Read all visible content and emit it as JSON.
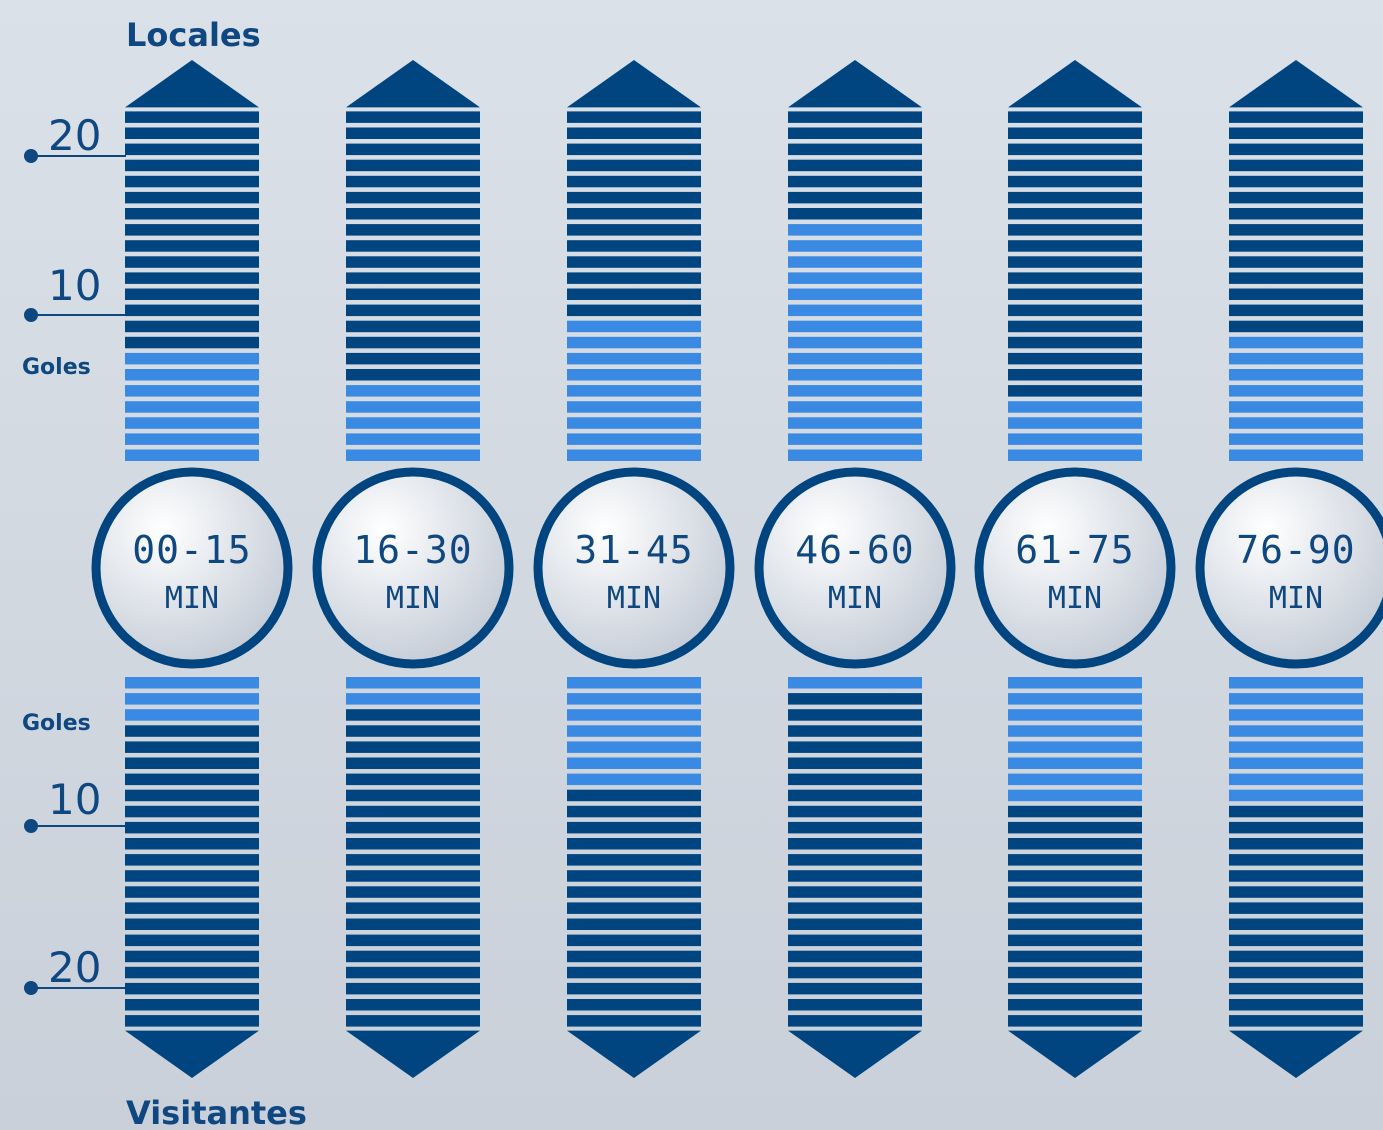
{
  "chart_data": {
    "type": "bar",
    "top_title": "Locales",
    "bottom_title": "Visitantes",
    "top_axis_word": "Goles",
    "bottom_axis_word": "Goles",
    "top_ticks": [
      "20",
      "10"
    ],
    "bottom_ticks": [
      "10",
      "20"
    ],
    "max_goals": 22,
    "unit": "MIN",
    "categories": [
      "00-15",
      "16-30",
      "31-45",
      "46-60",
      "61-75",
      "76-90"
    ],
    "series": [
      {
        "name": "Locales",
        "values": [
          7,
          5,
          9,
          15,
          4,
          8
        ]
      },
      {
        "name": "Visitantes",
        "values": [
          3,
          2,
          7,
          1,
          8,
          8
        ]
      }
    ],
    "colors": {
      "filled": "#3a8ae3",
      "empty": "#004580",
      "ring": "#004580",
      "text": "#0f4780",
      "circle_light": "#ffffff",
      "circle_dark": "#c3cbd6"
    }
  }
}
